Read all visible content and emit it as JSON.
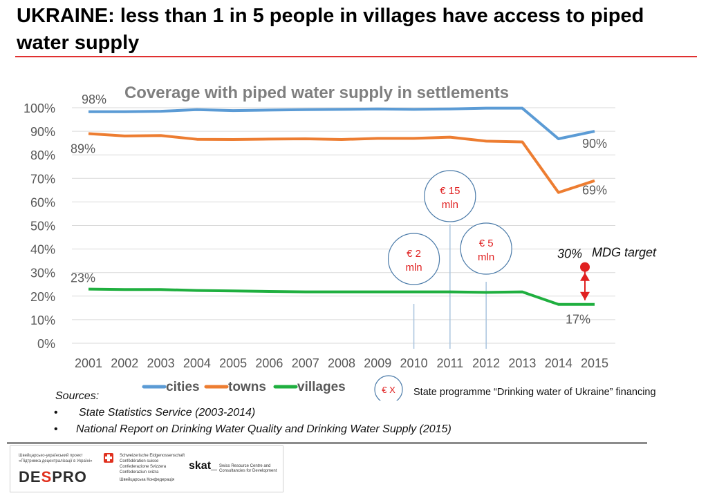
{
  "slide": {
    "title": "UKRAINE: less than 1 in 5 people in villages have access to piped water supply"
  },
  "chart_data": {
    "type": "line",
    "title": "Coverage with piped water supply in settlements",
    "xlabel": "",
    "ylabel": "",
    "ylim": [
      0,
      100
    ],
    "y_ticks": [
      "0%",
      "10%",
      "20%",
      "30%",
      "40%",
      "50%",
      "60%",
      "70%",
      "80%",
      "90%",
      "100%"
    ],
    "categories": [
      "2001",
      "2002",
      "2003",
      "2004",
      "2005",
      "2006",
      "2007",
      "2008",
      "2009",
      "2010",
      "2011",
      "2012",
      "2013",
      "2014",
      "2015"
    ],
    "series": [
      {
        "name": "cities",
        "color": "#5b9bd5",
        "values": [
          98.3,
          98.3,
          98.5,
          99.2,
          98.8,
          99.0,
          99.2,
          99.3,
          99.5,
          99.3,
          99.5,
          99.8,
          99.8,
          86.8,
          90.0
        ]
      },
      {
        "name": "towns",
        "color": "#ed7d31",
        "values": [
          89.0,
          88.0,
          88.2,
          86.6,
          86.5,
          86.7,
          86.8,
          86.5,
          87.0,
          87.0,
          87.5,
          85.8,
          85.5,
          64.0,
          69.0
        ]
      },
      {
        "name": "villages",
        "color": "#1faf3f",
        "values": [
          23.0,
          22.8,
          22.8,
          22.4,
          22.2,
          22.0,
          21.8,
          21.8,
          21.8,
          21.8,
          21.8,
          21.6,
          21.8,
          16.5,
          16.5
        ]
      }
    ],
    "point_labels": [
      {
        "series": "cities",
        "category": "2001",
        "text": "98%"
      },
      {
        "series": "cities",
        "category": "2015",
        "text": "90%"
      },
      {
        "series": "towns",
        "category": "2001",
        "text": "89%"
      },
      {
        "series": "towns",
        "category": "2015",
        "text": "69%"
      },
      {
        "series": "villages",
        "category": "2001",
        "text": "23%"
      },
      {
        "series": "villages",
        "category": "2015",
        "text": "17%"
      }
    ],
    "financing": [
      {
        "year": "2010",
        "line1": "€ 2",
        "line2": "mln"
      },
      {
        "year": "2011",
        "line1": "€ 15",
        "line2": "mln"
      },
      {
        "year": "2012",
        "line1": "€ 5",
        "line2": "mln"
      }
    ],
    "mdg_target": {
      "value": 30,
      "value_text": "30%",
      "label": "MDG target",
      "category": "2015"
    },
    "legend": {
      "position": "bottom",
      "items": [
        {
          "name": "cities",
          "color": "#5b9bd5"
        },
        {
          "name": "towns",
          "color": "#ed7d31"
        },
        {
          "name": "villages",
          "color": "#1faf3f"
        }
      ],
      "financing_symbol": "€ X",
      "financing_text": "State programme “Drinking water of Ukraine” financing"
    }
  },
  "sources": {
    "heading": "Sources:",
    "items": [
      "State Statistics Service (2003-2014)",
      "National Report on Drinking Water Quality and Drinking Water Supply (2015)"
    ]
  },
  "logos": {
    "despro_sub": "Швейцарсько-український проект «Підтримка децентралізації в Україні»",
    "despro_name_a": "DE",
    "despro_name_b": "S",
    "despro_name_c": "PRO",
    "swiss_text": "Schweizerische Eidgenossenschaft\nConfédération suisse\nConfederazione Svizzera\nConfederaziun svizra",
    "swiss_ua": "Швейцарська Конфедерація",
    "skat": "skat_",
    "skat_sub": "Swiss Resource Centre and\nConsultancies for Development"
  },
  "colors": {
    "title_rule": "#e03030",
    "grid": "#d9d9d9",
    "axis_text": "#595959",
    "chart_title": "#7f7f7f",
    "financing_text": "#e02020",
    "financing_circle": "#4a7aa8",
    "mdg_marker": "#e02020"
  }
}
